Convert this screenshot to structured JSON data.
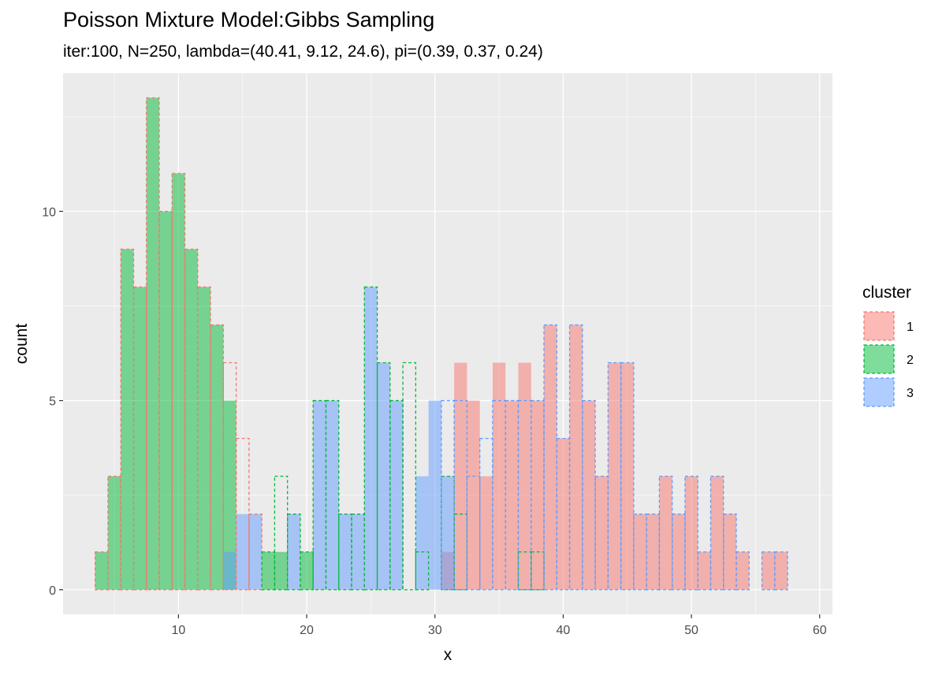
{
  "chart_data": {
    "type": "bar",
    "title": "Poisson Mixture Model:Gibbs Sampling",
    "subtitle": "iter:100, N=250, lambda=(40.41, 9.12, 24.6), pi=(0.39, 0.37, 0.24)",
    "xlabel": "x",
    "ylabel": "count",
    "xlim": [
      1,
      61
    ],
    "ylim": [
      -0.65,
      13.65
    ],
    "x_ticks": [
      10,
      20,
      30,
      40,
      50,
      60
    ],
    "y_ticks": [
      0,
      5,
      10
    ],
    "grid": true,
    "legend": {
      "title": "cluster",
      "position": "right"
    },
    "colors": {
      "1": "#F8766D",
      "2": "#00BA38",
      "3": "#619CFF"
    },
    "x": [
      4,
      5,
      6,
      7,
      8,
      9,
      10,
      11,
      12,
      13,
      14,
      15,
      16,
      17,
      18,
      19,
      20,
      21,
      22,
      23,
      24,
      25,
      26,
      27,
      28,
      29,
      30,
      31,
      32,
      33,
      34,
      35,
      36,
      37,
      38,
      39,
      40,
      41,
      42,
      43,
      44,
      45,
      46,
      47,
      48,
      49,
      50,
      51,
      52,
      53,
      54,
      55,
      56,
      57
    ],
    "series": [
      {
        "name": "1",
        "role": "fill",
        "values": [
          0,
          0,
          0,
          0,
          0,
          0,
          0,
          0,
          0,
          0,
          0,
          0,
          0,
          0,
          0,
          0,
          0,
          0,
          0,
          0,
          0,
          0,
          0,
          0,
          0,
          0,
          0,
          1,
          6,
          5,
          3,
          6,
          5,
          6,
          5,
          7,
          4,
          7,
          5,
          3,
          6,
          6,
          2,
          2,
          3,
          2,
          3,
          1,
          3,
          2,
          1,
          0,
          1,
          1
        ]
      },
      {
        "name": "2",
        "role": "fill",
        "values": [
          1,
          3,
          9,
          8,
          13,
          10,
          11,
          9,
          8,
          7,
          5,
          0,
          0,
          1,
          1,
          0,
          1,
          0,
          0,
          0,
          0,
          0,
          0,
          0,
          0,
          0,
          0,
          0,
          0,
          0,
          0,
          0,
          0,
          0,
          0,
          0,
          0,
          0,
          0,
          0,
          0,
          0,
          0,
          0,
          0,
          0,
          0,
          0,
          0,
          0,
          0,
          0,
          0,
          0
        ]
      },
      {
        "name": "3",
        "role": "fill",
        "values": [
          0,
          0,
          0,
          0,
          0,
          0,
          0,
          0,
          0,
          0,
          1,
          2,
          2,
          0,
          0,
          2,
          0,
          5,
          5,
          2,
          2,
          8,
          6,
          5,
          0,
          3,
          5,
          3,
          0,
          0,
          0,
          0,
          0,
          0,
          0,
          0,
          0,
          0,
          0,
          0,
          0,
          0,
          0,
          0,
          0,
          0,
          0,
          0,
          0,
          0,
          0,
          0,
          0,
          0
        ]
      },
      {
        "name": "1",
        "role": "outline",
        "values": [
          1,
          3,
          9,
          8,
          13,
          10,
          11,
          9,
          8,
          7,
          6,
          4,
          2,
          0,
          0,
          0,
          0,
          0,
          0,
          0,
          0,
          0,
          0,
          0,
          0,
          0,
          0,
          0,
          0,
          0,
          0,
          0,
          0,
          0,
          0,
          0,
          0,
          0,
          0,
          0,
          0,
          0,
          0,
          0,
          0,
          0,
          0,
          0,
          0,
          0,
          0,
          0,
          0,
          0
        ]
      },
      {
        "name": "2",
        "role": "outline",
        "values": [
          0,
          0,
          0,
          0,
          0,
          0,
          0,
          0,
          0,
          0,
          0,
          0,
          0,
          1,
          3,
          2,
          1,
          5,
          5,
          2,
          2,
          8,
          6,
          5,
          6,
          1,
          0,
          3,
          2,
          0,
          0,
          0,
          0,
          1,
          1,
          0,
          0,
          0,
          0,
          0,
          0,
          0,
          0,
          0,
          0,
          0,
          0,
          0,
          0,
          0,
          0,
          0,
          0,
          0
        ]
      },
      {
        "name": "3",
        "role": "outline",
        "values": [
          0,
          0,
          0,
          0,
          0,
          0,
          0,
          0,
          0,
          0,
          0,
          0,
          0,
          0,
          0,
          0,
          0,
          0,
          0,
          0,
          0,
          0,
          0,
          0,
          0,
          0,
          0,
          5,
          5,
          3,
          4,
          5,
          5,
          5,
          5,
          7,
          4,
          7,
          5,
          3,
          6,
          6,
          2,
          2,
          3,
          2,
          3,
          1,
          3,
          2,
          1,
          0,
          1,
          1
        ]
      }
    ]
  }
}
